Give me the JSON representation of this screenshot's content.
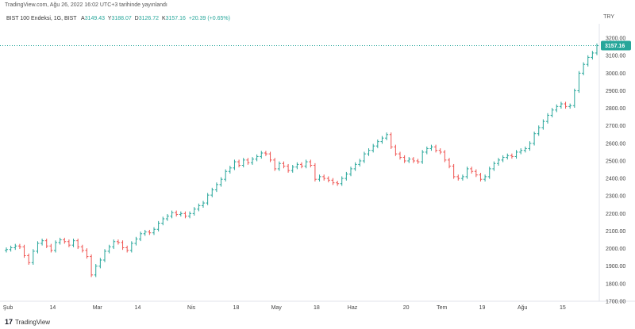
{
  "header": {
    "published": "TradingView.com, Ağu 26, 2022 16:02 UTC+3 tarihinde yayınlandı",
    "currency": "TRY"
  },
  "series_info": {
    "symbol": "BIST 100 Endeksi, 1G, BIST",
    "open_label": "A",
    "open": "3149.43",
    "high_label": "Y",
    "high": "3188.07",
    "low_label": "D",
    "low": "3126.72",
    "close_label": "K",
    "close": "3157.16",
    "change": "+20.39 (+0.65%)"
  },
  "last_price_label": "3157.16",
  "brand": {
    "name": "TradingView",
    "logo_text": "17"
  },
  "colors": {
    "up": "#26a69a",
    "down": "#ef5350",
    "last_line": "#26a69a"
  },
  "chart_data": {
    "type": "ohlc",
    "title": "BIST 100 Endeksi, 1G, BIST",
    "ylim": [
      1700,
      3250
    ],
    "y_ticks": [
      1700,
      1800,
      1900,
      2000,
      2100,
      2200,
      2300,
      2400,
      2500,
      2600,
      2700,
      2800,
      2900,
      3000,
      3100,
      3200
    ],
    "y_tick_labels": [
      "1700.00",
      "1800.00",
      "1900.00",
      "2000.00",
      "2100.00",
      "2200.00",
      "2300.00",
      "2400.00",
      "2500.00",
      "2600.00",
      "2700.00",
      "2800.00",
      "2900.00",
      "3000.00",
      "3100.00",
      "3200.00"
    ],
    "x_ticks": [
      {
        "label": "Şub",
        "index": 0
      },
      {
        "label": "14",
        "index": 10
      },
      {
        "label": "Mar",
        "index": 20
      },
      {
        "label": "14",
        "index": 29
      },
      {
        "label": "Nis",
        "index": 41
      },
      {
        "label": "18",
        "index": 51
      },
      {
        "label": "May",
        "index": 60
      },
      {
        "label": "18",
        "index": 69
      },
      {
        "label": "Haz",
        "index": 77
      },
      {
        "label": "20",
        "index": 89
      },
      {
        "label": "Tem",
        "index": 97
      },
      {
        "label": "19",
        "index": 106
      },
      {
        "label": "Ağu",
        "index": 115
      },
      {
        "label": "15",
        "index": 124
      }
    ],
    "closes": [
      1995,
      2005,
      2015,
      2010,
      1960,
      1920,
      1985,
      2030,
      2045,
      2015,
      1990,
      2035,
      2050,
      2040,
      2020,
      2045,
      2010,
      1990,
      1955,
      1850,
      1900,
      1935,
      1985,
      2010,
      2040,
      2035,
      2005,
      1990,
      2030,
      2055,
      2085,
      2095,
      2090,
      2110,
      2145,
      2170,
      2185,
      2205,
      2195,
      2200,
      2185,
      2200,
      2225,
      2245,
      2260,
      2305,
      2335,
      2365,
      2395,
      2440,
      2460,
      2495,
      2475,
      2505,
      2490,
      2510,
      2525,
      2545,
      2540,
      2505,
      2455,
      2485,
      2470,
      2445,
      2465,
      2480,
      2470,
      2495,
      2475,
      2395,
      2410,
      2400,
      2390,
      2375,
      2370,
      2400,
      2425,
      2455,
      2480,
      2500,
      2540,
      2560,
      2585,
      2610,
      2630,
      2650,
      2580,
      2540,
      2520,
      2500,
      2510,
      2500,
      2495,
      2550,
      2570,
      2580,
      2560,
      2550,
      2505,
      2470,
      2410,
      2400,
      2410,
      2455,
      2440,
      2420,
      2395,
      2410,
      2455,
      2485,
      2505,
      2520,
      2530,
      2525,
      2550,
      2560,
      2570,
      2600,
      2655,
      2690,
      2725,
      2760,
      2790,
      2810,
      2825,
      2810,
      2815,
      2900,
      3000,
      3050,
      3090,
      3115,
      3157.16
    ]
  }
}
